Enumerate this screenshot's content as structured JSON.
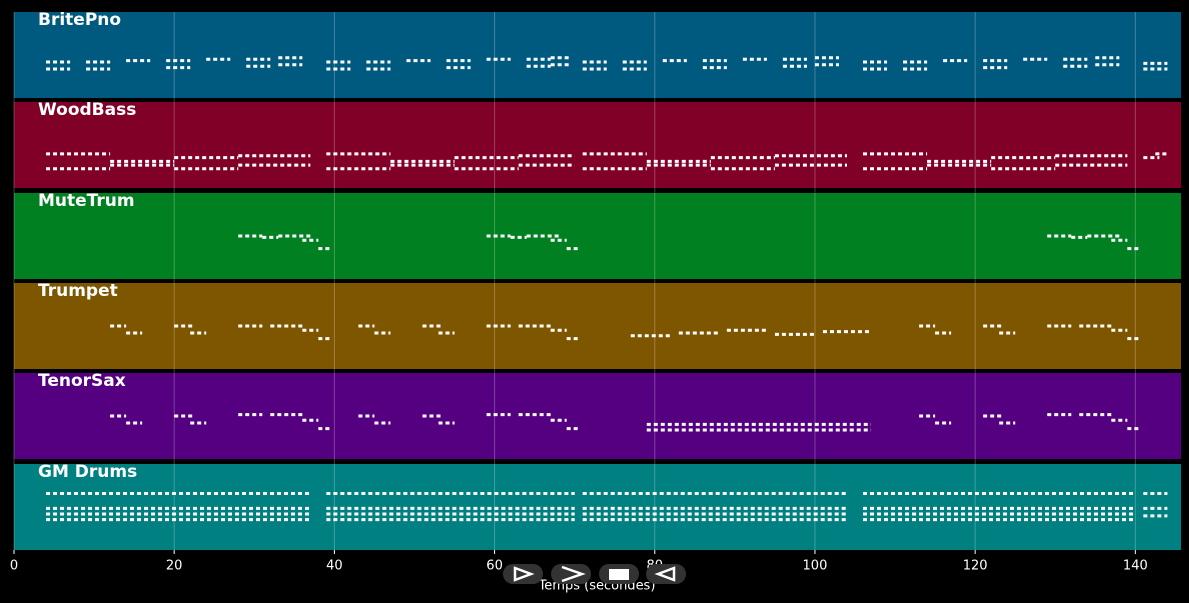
{
  "chart_data": {
    "type": "pianoroll",
    "xlabel": "Temps (secondes)",
    "xlim": [
      0,
      145.7
    ],
    "xticks": [
      0,
      20,
      40,
      60,
      80,
      100,
      120,
      140
    ],
    "grid": true,
    "tracks": [
      {
        "name": "BritePno",
        "color": "#005a80",
        "ylim": [
          40,
          80
        ],
        "notes": [
          [
            4,
            3,
            60
          ],
          [
            4,
            3,
            55
          ],
          [
            9,
            3,
            60
          ],
          [
            9,
            3,
            55
          ],
          [
            14,
            3,
            61
          ],
          [
            19,
            3,
            61
          ],
          [
            19,
            3,
            56
          ],
          [
            24,
            3,
            62
          ],
          [
            29,
            3,
            62
          ],
          [
            29,
            3,
            57
          ],
          [
            33,
            3,
            63
          ],
          [
            33,
            3,
            58
          ],
          [
            39,
            3,
            60
          ],
          [
            39,
            3,
            55
          ],
          [
            44,
            3,
            60
          ],
          [
            44,
            3,
            55
          ],
          [
            49,
            3,
            61
          ],
          [
            54,
            3,
            61
          ],
          [
            54,
            3,
            56
          ],
          [
            59,
            3,
            62
          ],
          [
            64,
            3,
            62
          ],
          [
            64,
            3,
            57
          ],
          [
            67,
            2.5,
            63
          ],
          [
            67,
            2.5,
            58
          ],
          [
            71,
            3,
            60
          ],
          [
            71,
            3,
            55
          ],
          [
            76,
            3,
            60
          ],
          [
            76,
            3,
            55
          ],
          [
            81,
            3,
            61
          ],
          [
            86,
            3,
            61
          ],
          [
            86,
            3,
            56
          ],
          [
            91,
            3,
            62
          ],
          [
            96,
            3,
            62
          ],
          [
            96,
            3,
            57
          ],
          [
            100,
            3,
            63
          ],
          [
            100,
            3,
            58
          ],
          [
            106,
            3,
            60
          ],
          [
            106,
            3,
            55
          ],
          [
            111,
            3,
            60
          ],
          [
            111,
            3,
            55
          ],
          [
            116,
            3,
            61
          ],
          [
            121,
            3,
            61
          ],
          [
            121,
            3,
            56
          ],
          [
            126,
            3,
            62
          ],
          [
            131,
            3,
            62
          ],
          [
            131,
            3,
            57
          ],
          [
            135,
            3,
            63
          ],
          [
            135,
            3,
            58
          ],
          [
            141,
            3,
            59
          ],
          [
            141,
            3,
            55
          ]
        ]
      },
      {
        "name": "WoodBass",
        "color": "#800028",
        "ylim": [
          30,
          60
        ],
        "notes": [
          [
            4,
            8,
            44
          ],
          [
            4,
            8,
            36
          ],
          [
            12,
            8,
            40
          ],
          [
            12,
            8,
            38
          ],
          [
            20,
            8,
            42
          ],
          [
            20,
            8,
            36
          ],
          [
            28,
            9,
            43
          ],
          [
            28,
            9,
            38
          ],
          [
            39,
            8,
            44
          ],
          [
            39,
            8,
            36
          ],
          [
            47,
            8,
            40
          ],
          [
            47,
            8,
            38
          ],
          [
            55,
            8,
            42
          ],
          [
            55,
            8,
            36
          ],
          [
            63,
            7,
            43
          ],
          [
            63,
            7,
            38
          ],
          [
            71,
            8,
            44
          ],
          [
            71,
            8,
            36
          ],
          [
            79,
            8,
            40
          ],
          [
            79,
            8,
            38
          ],
          [
            87,
            8,
            42
          ],
          [
            87,
            8,
            36
          ],
          [
            95,
            9,
            43
          ],
          [
            95,
            9,
            38
          ],
          [
            106,
            8,
            44
          ],
          [
            106,
            8,
            36
          ],
          [
            114,
            8,
            40
          ],
          [
            114,
            8,
            38
          ],
          [
            122,
            8,
            42
          ],
          [
            122,
            8,
            36
          ],
          [
            130,
            9,
            43
          ],
          [
            130,
            9,
            38
          ],
          [
            141,
            2,
            42
          ],
          [
            142.5,
            1.5,
            44
          ]
        ]
      },
      {
        "name": "MuteTrum",
        "color": "#008020",
        "ylim": [
          50,
          90
        ],
        "notes": [
          [
            28,
            3,
            75
          ],
          [
            31,
            2,
            74
          ],
          [
            33,
            4,
            75
          ],
          [
            36,
            2,
            72
          ],
          [
            38,
            1.5,
            66
          ],
          [
            59,
            3,
            75
          ],
          [
            62,
            2,
            74
          ],
          [
            64,
            4,
            75
          ],
          [
            67,
            2,
            72
          ],
          [
            69,
            1.5,
            66
          ],
          [
            129,
            3,
            75
          ],
          [
            132,
            2,
            74
          ],
          [
            134,
            4,
            75
          ],
          [
            137,
            2,
            72
          ],
          [
            139,
            1.5,
            66
          ]
        ]
      },
      {
        "name": "Trumpet",
        "color": "#7f5600",
        "ylim": [
          50,
          90
        ],
        "notes": [
          [
            12,
            2,
            75
          ],
          [
            14,
            2,
            70
          ],
          [
            20,
            2.5,
            75
          ],
          [
            22,
            2,
            70
          ],
          [
            28,
            3,
            75
          ],
          [
            32,
            4,
            75
          ],
          [
            36,
            2,
            72
          ],
          [
            38,
            1.5,
            66
          ],
          [
            43,
            2,
            75
          ],
          [
            45,
            2,
            70
          ],
          [
            51,
            2.5,
            75
          ],
          [
            53,
            2,
            70
          ],
          [
            59,
            3,
            75
          ],
          [
            63,
            4,
            75
          ],
          [
            67,
            2,
            72
          ],
          [
            69,
            1.5,
            66
          ],
          [
            77,
            5,
            68
          ],
          [
            83,
            5,
            70
          ],
          [
            89,
            5,
            72
          ],
          [
            95,
            5,
            69
          ],
          [
            101,
            6,
            71
          ],
          [
            113,
            2,
            75
          ],
          [
            115,
            2,
            70
          ],
          [
            121,
            2.5,
            75
          ],
          [
            123,
            2,
            70
          ],
          [
            129,
            3,
            75
          ],
          [
            133,
            4,
            75
          ],
          [
            137,
            2,
            72
          ],
          [
            139,
            1.5,
            66
          ]
        ]
      },
      {
        "name": "TenorSax",
        "color": "#540080",
        "ylim": [
          50,
          90
        ],
        "notes": [
          [
            12,
            2,
            75
          ],
          [
            14,
            2,
            70
          ],
          [
            20,
            2.5,
            75
          ],
          [
            22,
            2,
            70
          ],
          [
            28,
            3,
            76
          ],
          [
            32,
            4,
            76
          ],
          [
            36,
            2,
            72
          ],
          [
            38,
            1.5,
            66
          ],
          [
            43,
            2,
            75
          ],
          [
            45,
            2,
            70
          ],
          [
            51,
            2.5,
            75
          ],
          [
            53,
            2,
            70
          ],
          [
            59,
            3,
            76
          ],
          [
            63,
            4,
            76
          ],
          [
            67,
            2,
            72
          ],
          [
            69,
            1.5,
            66
          ],
          [
            79,
            28,
            69
          ],
          [
            79,
            28,
            65
          ],
          [
            113,
            2,
            75
          ],
          [
            115,
            2,
            70
          ],
          [
            121,
            2.5,
            75
          ],
          [
            123,
            2,
            70
          ],
          [
            129,
            3,
            76
          ],
          [
            133,
            4,
            76
          ],
          [
            137,
            2,
            72
          ],
          [
            139,
            1.5,
            66
          ]
        ]
      },
      {
        "name": "GM Drums",
        "color": "#008080",
        "ylim": [
          30,
          60
        ],
        "notes": [
          [
            4,
            33,
            56
          ],
          [
            4,
            33,
            48
          ],
          [
            4,
            33,
            45
          ],
          [
            4,
            33,
            42
          ],
          [
            39,
            31,
            56
          ],
          [
            39,
            31,
            48
          ],
          [
            39,
            31,
            45
          ],
          [
            39,
            31,
            42
          ],
          [
            71,
            33,
            56
          ],
          [
            71,
            33,
            48
          ],
          [
            71,
            33,
            45
          ],
          [
            71,
            33,
            42
          ],
          [
            106,
            34,
            56
          ],
          [
            106,
            34,
            48
          ],
          [
            106,
            34,
            45
          ],
          [
            106,
            34,
            42
          ],
          [
            141,
            3,
            56
          ],
          [
            141,
            3,
            48
          ],
          [
            141,
            3,
            44
          ]
        ]
      }
    ]
  }
}
